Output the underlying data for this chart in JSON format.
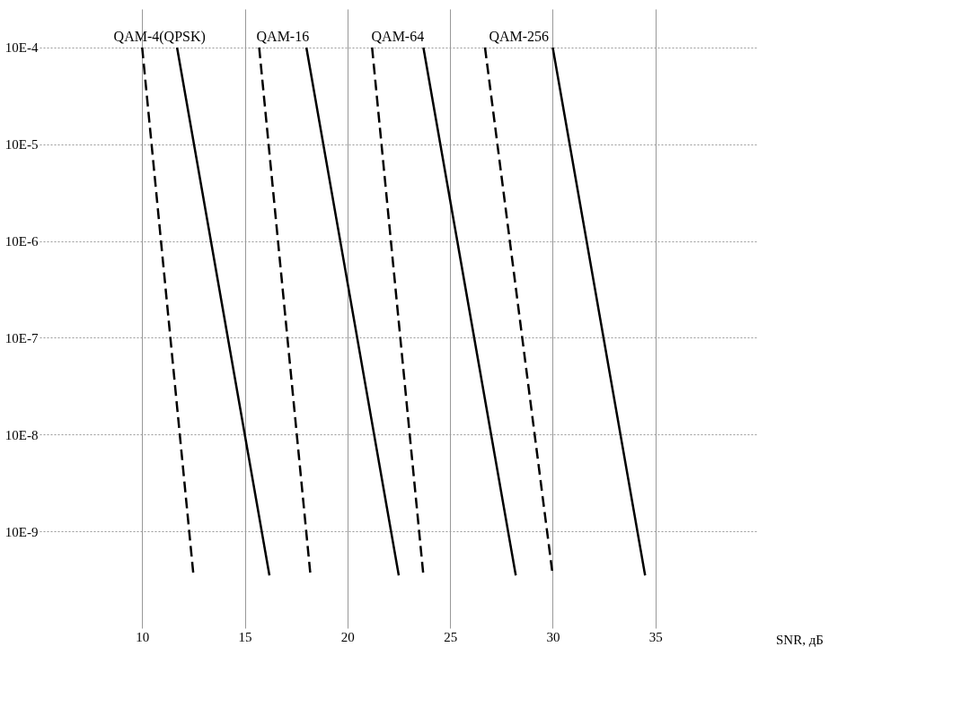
{
  "chart_data": {
    "type": "line",
    "xlabel": "SNR, дБ",
    "log": "y",
    "xlim": [
      5,
      40
    ],
    "xticks": [
      10,
      15,
      20,
      25,
      30,
      35
    ],
    "ylim": [
      1e-09,
      0.0025
    ],
    "yticks": [
      {
        "value": 0.001,
        "label": "10E-4"
      },
      {
        "value": 0.0001,
        "label": "10E-5"
      },
      {
        "value": 1e-05,
        "label": "10E-6"
      },
      {
        "value": 1e-06,
        "label": "10E-7"
      },
      {
        "value": 1e-07,
        "label": "10E-8"
      },
      {
        "value": 1e-08,
        "label": "10E-9"
      }
    ],
    "grid": true,
    "marker": "none",
    "series": [
      {
        "color": "#000000",
        "line_style": "dashed",
        "x": [
          10.0,
          12.5
        ],
        "values": [
          0.001,
          3.5e-09
        ]
      },
      {
        "color": "#000000",
        "line_style": "solid",
        "x": [
          11.7,
          16.2
        ],
        "values": [
          0.001,
          3.5e-09
        ]
      },
      {
        "color": "#000000",
        "line_style": "dashed",
        "x": [
          15.7,
          18.2
        ],
        "values": [
          0.001,
          3.5e-09
        ]
      },
      {
        "color": "#000000",
        "line_style": "solid",
        "x": [
          18.0,
          22.5
        ],
        "values": [
          0.001,
          3.5e-09
        ]
      },
      {
        "color": "#000000",
        "line_style": "dashed",
        "x": [
          21.2,
          23.7
        ],
        "values": [
          0.001,
          3.5e-09
        ]
      },
      {
        "color": "#000000",
        "line_style": "solid",
        "x": [
          23.7,
          28.2
        ],
        "values": [
          0.001,
          3.5e-09
        ]
      },
      {
        "color": "#000000",
        "line_style": "dashed",
        "x": [
          26.7,
          30.0
        ],
        "values": [
          0.001,
          3.5e-09
        ]
      },
      {
        "color": "#000000",
        "line_style": "solid",
        "x": [
          30.0,
          34.5
        ],
        "values": [
          0.001,
          3.5e-09
        ]
      }
    ],
    "annotations": [
      "QAM-4(QPSK)",
      "QAM-16",
      "QAM-64",
      "QAM-256"
    ]
  }
}
